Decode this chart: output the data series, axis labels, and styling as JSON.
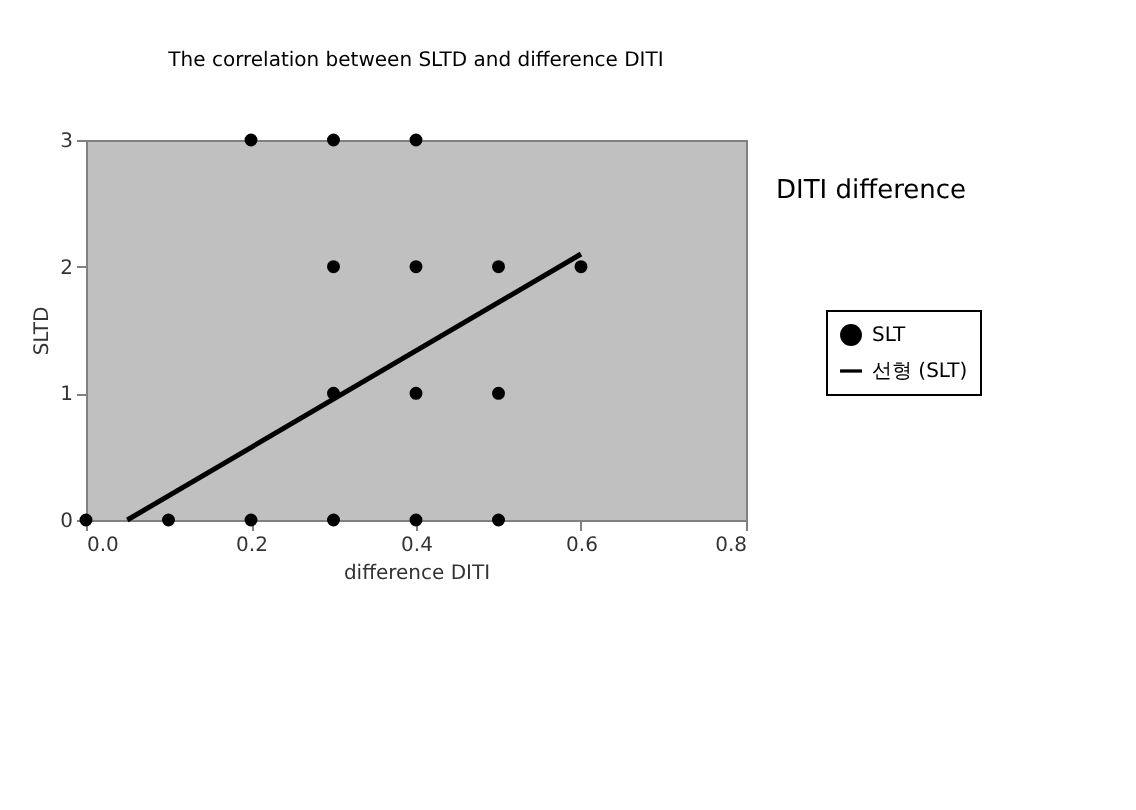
{
  "chart_data": {
    "type": "scatter",
    "title": "The correlation between SLTD and difference DITI",
    "xlabel": "difference DITI",
    "ylabel": "SLTD",
    "xlim": [
      0,
      0.8
    ],
    "xticks": [
      {
        "value": 0,
        "label": "0.0"
      },
      {
        "value": 0.2,
        "label": "0.2"
      },
      {
        "value": 0.4,
        "label": "0.4"
      },
      {
        "value": 0.6,
        "label": "0.6"
      },
      {
        "value": 0.8,
        "label": "0.8"
      }
    ],
    "ylim": [
      0,
      3
    ],
    "yticks": [
      {
        "value": 0,
        "label": "0"
      },
      {
        "value": 1,
        "label": "1"
      },
      {
        "value": 2,
        "label": "2"
      },
      {
        "value": 3,
        "label": "3"
      }
    ],
    "grid": false,
    "legend": "right",
    "marker": "circle",
    "annotations": [
      "DITI difference"
    ],
    "series": [
      {
        "name": "SLT",
        "color": "#000000",
        "x": [
          0.0,
          0.1,
          0.2,
          0.3,
          0.4,
          0.5,
          0.3,
          0.4,
          0.5,
          0.3,
          0.4,
          0.5,
          0.6,
          0.2,
          0.3,
          0.4
        ],
        "values": [
          0,
          0,
          0,
          0,
          0,
          0,
          1,
          1,
          1,
          2,
          2,
          2,
          2,
          3,
          3,
          3
        ]
      },
      {
        "name": "선형 (SLT)",
        "type": "line",
        "color": "#000000",
        "line_style": "solid",
        "marker": "none",
        "x": [
          0.05,
          0.6
        ],
        "values": [
          0,
          2.1
        ]
      }
    ]
  }
}
